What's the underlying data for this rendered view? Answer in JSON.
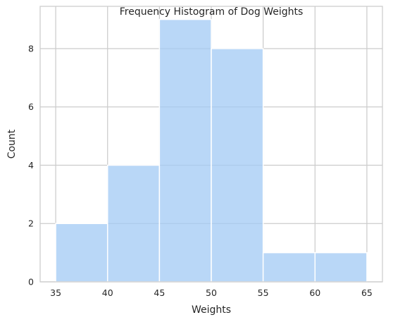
{
  "chart_data": {
    "type": "histogram",
    "title": "Frequency Histogram of Dog Weights",
    "xlabel": "Weights",
    "ylabel": "Count",
    "bins": [
      {
        "start": 35,
        "end": 40,
        "count": 2
      },
      {
        "start": 40,
        "end": 45,
        "count": 4
      },
      {
        "start": 45,
        "end": 50,
        "count": 9
      },
      {
        "start": 50,
        "end": 55,
        "count": 8
      },
      {
        "start": 55,
        "end": 60,
        "count": 1
      },
      {
        "start": 60,
        "end": 65,
        "count": 1
      }
    ],
    "xlim": [
      33.5,
      66.5
    ],
    "ylim": [
      0,
      9.45
    ],
    "xticks": [
      35,
      40,
      45,
      50,
      55,
      60,
      65
    ],
    "yticks": [
      0,
      2,
      4,
      6,
      8
    ],
    "grid": true,
    "legend": "none",
    "colors": {
      "bar_fill": "#a1c9f4",
      "bar_edge": "#ffffff",
      "grid": "#cccccc",
      "spine": "#cccccc",
      "text": "#262626"
    }
  }
}
